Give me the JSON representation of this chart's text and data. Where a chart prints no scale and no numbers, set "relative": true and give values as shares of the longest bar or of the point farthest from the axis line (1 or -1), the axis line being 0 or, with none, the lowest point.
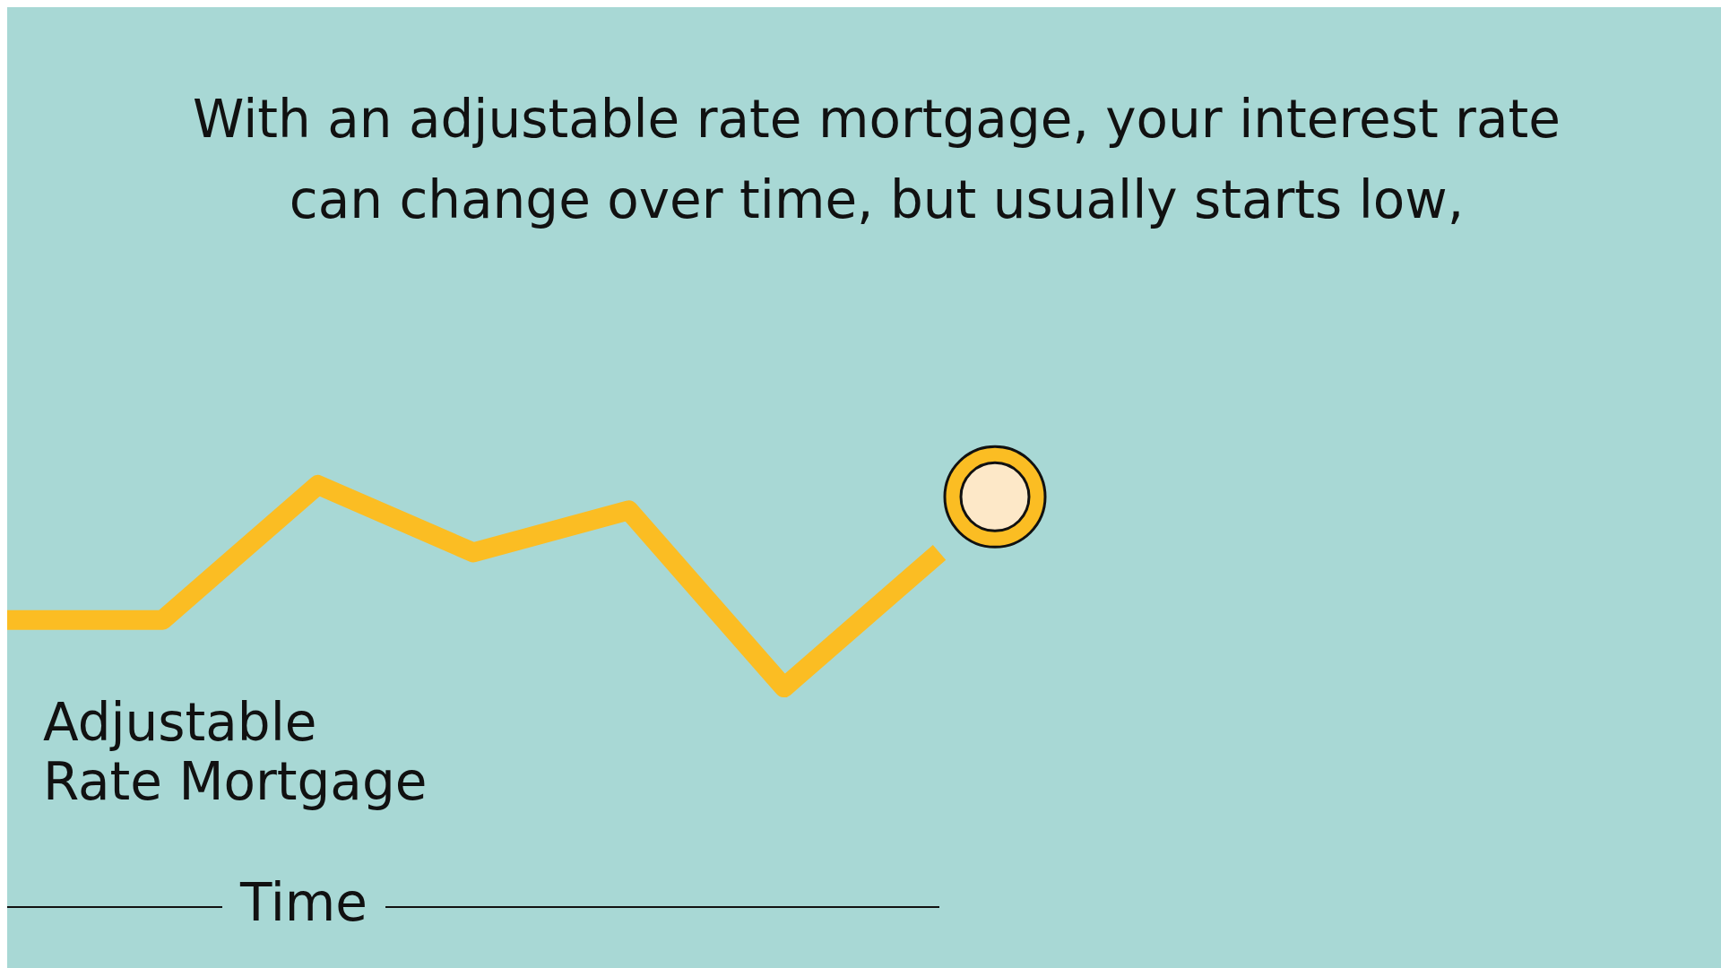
{
  "chart_data": {
    "type": "line",
    "title": "With an adjustable rate mortgage, your interest rate can change over time, but usually starts low,",
    "xlabel": "Time",
    "relative": true,
    "categories": [
      null,
      null,
      null,
      null,
      null,
      null,
      null
    ],
    "series": [
      {
        "name": "Adjustable Rate Mortgage",
        "color": "#fbbd23",
        "values": [
          0.68,
          0.68,
          1,
          0.84,
          0.94,
          0.52,
          0.84
        ]
      }
    ],
    "marker": "none"
  }
}
